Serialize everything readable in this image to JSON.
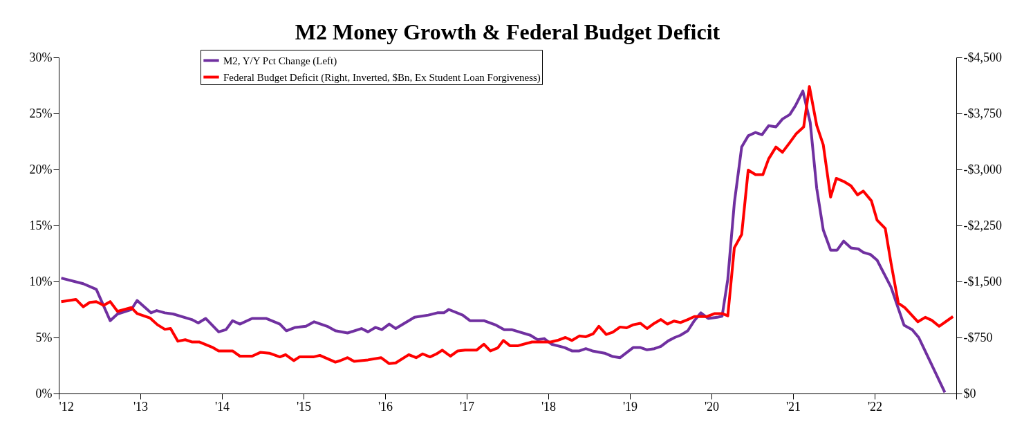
{
  "chart_data": {
    "type": "line",
    "title": "M2 Money Growth & Federal Budget Deficit",
    "xlim": [
      2012,
      2023
    ],
    "xticks": [
      {
        "value": 2012,
        "label": "'12"
      },
      {
        "value": 2013,
        "label": "'13"
      },
      {
        "value": 2014,
        "label": "'14"
      },
      {
        "value": 2015,
        "label": "'15"
      },
      {
        "value": 2016,
        "label": "'16"
      },
      {
        "value": 2017,
        "label": "'17"
      },
      {
        "value": 2018,
        "label": "'18"
      },
      {
        "value": 2019,
        "label": "'19"
      },
      {
        "value": 2020,
        "label": "'20"
      },
      {
        "value": 2021,
        "label": "'21"
      },
      {
        "value": 2022,
        "label": "'22"
      },
      {
        "value": 2023,
        "label": null
      }
    ],
    "ylim": [
      0,
      30
    ],
    "yticks": [
      {
        "value": 0,
        "label": "0%"
      },
      {
        "value": 5,
        "label": "5%"
      },
      {
        "value": 10,
        "label": "10%"
      },
      {
        "value": 15,
        "label": "15%"
      },
      {
        "value": 20,
        "label": "20%"
      },
      {
        "value": 25,
        "label": "25%"
      },
      {
        "value": 30,
        "label": "30%"
      }
    ],
    "y2lim": [
      0,
      -4500
    ],
    "y2ticks": [
      {
        "value": 0,
        "label": "$0"
      },
      {
        "value": -750,
        "label": "-$750"
      },
      {
        "value": -1500,
        "label": "-$1,500"
      },
      {
        "value": -2250,
        "label": "-$2,250"
      },
      {
        "value": -3000,
        "label": "-$3,000"
      },
      {
        "value": -3750,
        "label": "-$3,750"
      },
      {
        "value": -4500,
        "label": "-$4,500"
      }
    ],
    "grid": false,
    "legend": "top",
    "line_style": "solid",
    "marker": "none",
    "series": [
      {
        "name": "M2, Y/Y Pct Change (Left)",
        "color": "#7030a0",
        "x": [
          2012.03,
          2012.3,
          2012.46,
          2012.63,
          2012.72,
          2012.89,
          2012.96,
          2013.13,
          2013.2,
          2013.3,
          2013.4,
          2013.63,
          2013.71,
          2013.8,
          2013.96,
          2014.05,
          2014.13,
          2014.22,
          2014.37,
          2014.54,
          2014.71,
          2014.79,
          2014.9,
          2015.03,
          2015.13,
          2015.29,
          2015.39,
          2015.54,
          2015.71,
          2015.79,
          2015.88,
          2015.96,
          2016.05,
          2016.13,
          2016.36,
          2016.53,
          2016.64,
          2016.72,
          2016.78,
          2016.95,
          2017.04,
          2017.21,
          2017.36,
          2017.46,
          2017.55,
          2017.78,
          2017.87,
          2017.95,
          2018.04,
          2018.2,
          2018.29,
          2018.38,
          2018.46,
          2018.54,
          2018.69,
          2018.79,
          2018.88,
          2019.04,
          2019.13,
          2019.21,
          2019.3,
          2019.38,
          2019.47,
          2019.55,
          2019.62,
          2019.71,
          2019.79,
          2019.87,
          2019.96,
          2020.07,
          2020.13,
          2020.2,
          2020.28,
          2020.37,
          2020.45,
          2020.54,
          2020.62,
          2020.7,
          2020.79,
          2020.87,
          2020.96,
          2021.03,
          2021.12,
          2021.21,
          2021.29,
          2021.37,
          2021.46,
          2021.54,
          2021.62,
          2021.71,
          2021.8,
          2021.86,
          2021.95,
          2022.03,
          2022.2,
          2022.36,
          2022.46,
          2022.54,
          2022.86
        ],
        "values": [
          10.3,
          9.8,
          9.3,
          6.5,
          7.1,
          7.5,
          8.3,
          7.2,
          7.4,
          7.2,
          7.1,
          6.6,
          6.3,
          6.7,
          5.5,
          5.7,
          6.5,
          6.2,
          6.7,
          6.7,
          6.2,
          5.6,
          5.9,
          6.0,
          6.4,
          6.0,
          5.6,
          5.4,
          5.8,
          5.5,
          5.9,
          5.7,
          6.2,
          5.8,
          6.8,
          7.0,
          7.2,
          7.2,
          7.5,
          7.0,
          6.5,
          6.5,
          6.1,
          5.7,
          5.7,
          5.2,
          4.8,
          4.9,
          4.4,
          4.1,
          3.8,
          3.8,
          4.0,
          3.8,
          3.6,
          3.3,
          3.2,
          4.1,
          4.1,
          3.9,
          4.0,
          4.2,
          4.7,
          5.0,
          5.2,
          5.6,
          6.5,
          7.2,
          6.7,
          6.8,
          6.9,
          10.2,
          17.0,
          22.0,
          23.0,
          23.3,
          23.1,
          23.9,
          23.8,
          24.5,
          24.9,
          25.7,
          27.0,
          24.2,
          18.3,
          14.6,
          12.8,
          12.8,
          13.6,
          13.0,
          12.9,
          12.6,
          12.4,
          11.9,
          9.5,
          6.1,
          5.7,
          5.0,
          0.1
        ]
      },
      {
        "name": "Federal Budget Deficit (Right, Inverted, $Bn, Ex Student Loan Forgiveness)",
        "color": "#ff0000",
        "axis": "y2",
        "x": [
          2012.03,
          2012.21,
          2012.3,
          2012.38,
          2012.46,
          2012.55,
          2012.63,
          2012.72,
          2012.89,
          2012.96,
          2013.12,
          2013.21,
          2013.3,
          2013.37,
          2013.46,
          2013.55,
          2013.63,
          2013.72,
          2013.88,
          2013.96,
          2014.05,
          2014.13,
          2014.22,
          2014.37,
          2014.47,
          2014.58,
          2014.71,
          2014.78,
          2014.88,
          2014.95,
          2015.12,
          2015.2,
          2015.39,
          2015.45,
          2015.54,
          2015.62,
          2015.79,
          2015.95,
          2016.05,
          2016.13,
          2016.29,
          2016.38,
          2016.46,
          2016.55,
          2016.63,
          2016.7,
          2016.8,
          2016.89,
          2016.98,
          2017.12,
          2017.21,
          2017.29,
          2017.38,
          2017.45,
          2017.53,
          2017.63,
          2017.8,
          2018.03,
          2018.11,
          2018.21,
          2018.29,
          2018.38,
          2018.46,
          2018.55,
          2018.62,
          2018.71,
          2018.79,
          2018.88,
          2018.96,
          2019.04,
          2019.13,
          2019.21,
          2019.3,
          2019.38,
          2019.46,
          2019.54,
          2019.62,
          2019.71,
          2019.79,
          2019.94,
          2020.04,
          2020.13,
          2020.2,
          2020.28,
          2020.37,
          2020.45,
          2020.54,
          2020.63,
          2020.7,
          2020.79,
          2020.87,
          2020.96,
          2021.04,
          2021.13,
          2021.2,
          2021.29,
          2021.37,
          2021.46,
          2021.53,
          2021.62,
          2021.71,
          2021.79,
          2021.86,
          2021.96,
          2022.03,
          2022.13,
          2022.2,
          2022.29,
          2022.37,
          2022.53,
          2022.62,
          2022.7,
          2022.79,
          2022.96
        ],
        "values": [
          -1230,
          -1260,
          -1160,
          -1220,
          -1230,
          -1180,
          -1230,
          -1100,
          -1150,
          -1070,
          -1010,
          -920,
          -860,
          -870,
          -700,
          -720,
          -690,
          -690,
          -620,
          -570,
          -570,
          -570,
          -500,
          -500,
          -550,
          -540,
          -490,
          -520,
          -440,
          -490,
          -490,
          -510,
          -420,
          -440,
          -480,
          -430,
          -450,
          -480,
          -400,
          -410,
          -520,
          -480,
          -530,
          -490,
          -530,
          -580,
          -500,
          -570,
          -580,
          -580,
          -660,
          -570,
          -610,
          -710,
          -640,
          -640,
          -690,
          -690,
          -710,
          -750,
          -710,
          -770,
          -760,
          -800,
          -900,
          -790,
          -820,
          -890,
          -880,
          -920,
          -940,
          -870,
          -940,
          -990,
          -930,
          -970,
          -950,
          -990,
          -1030,
          -1030,
          -1070,
          -1070,
          -1040,
          -1950,
          -2130,
          -2990,
          -2930,
          -2930,
          -3140,
          -3300,
          -3230,
          -3360,
          -3480,
          -3570,
          -4110,
          -3590,
          -3330,
          -2630,
          -2880,
          -2840,
          -2780,
          -2660,
          -2710,
          -2580,
          -2320,
          -2210,
          -1750,
          -1210,
          -1150,
          -960,
          -1020,
          -980,
          -900,
          -1030
        ]
      }
    ]
  }
}
